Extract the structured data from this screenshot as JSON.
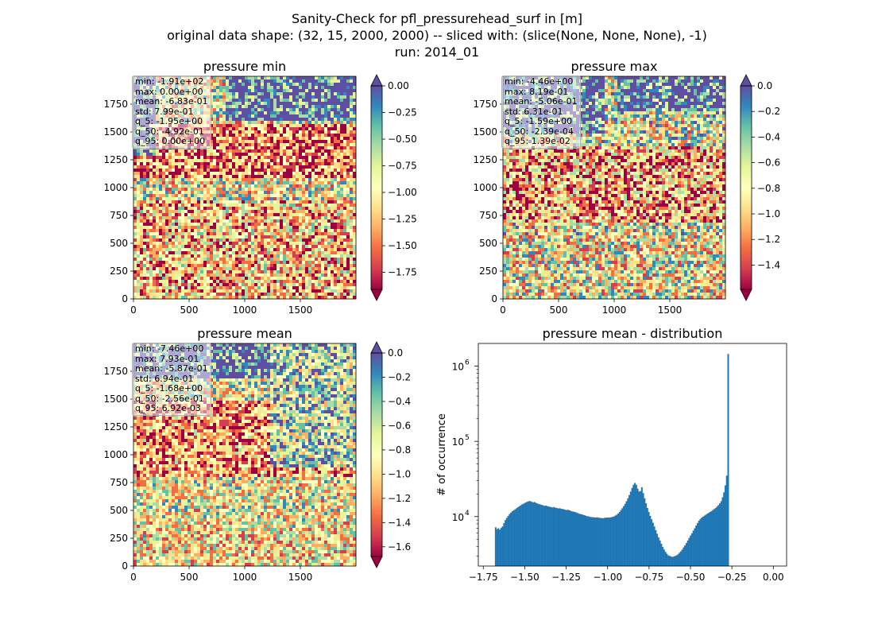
{
  "figure": {
    "suptitle_lines": [
      "Sanity-Check for pfl_pressurehead_surf in [m]",
      "original data shape: (32, 15, 2000, 2000) -- sliced with: (slice(None, None, None), -1)",
      "run: 2014_01"
    ]
  },
  "colors": {
    "spectral": [
      "#9e0142",
      "#d53e4f",
      "#f46d43",
      "#fdae61",
      "#fee08b",
      "#ffffbf",
      "#e6f598",
      "#abdda4",
      "#66c2a5",
      "#3288bd",
      "#5e4fa2"
    ],
    "hist_bar": "#1f77b4"
  },
  "chart_data": [
    {
      "type": "heatmap",
      "id": "min",
      "title": "pressure min",
      "x_ticks": [
        "0",
        "500",
        "1000",
        "1500"
      ],
      "y_ticks": [
        "0",
        "250",
        "500",
        "750",
        "1000",
        "1250",
        "1500",
        "1750"
      ],
      "axis_range": [
        0,
        2000
      ],
      "colorbar": {
        "range": [
          -1.91,
          0.0
        ],
        "ticks": [
          0.0,
          -0.25,
          -0.5,
          -0.75,
          -1.0,
          -1.25,
          -1.5,
          -1.75
        ],
        "tick_labels": [
          "0.00",
          "−0.25",
          "−0.50",
          "−0.75",
          "−1.00",
          "−1.25",
          "−1.50",
          "−1.75"
        ],
        "extend": "both"
      },
      "stats": [
        "min: -1.91e+02",
        "max: 0.00e+00",
        "mean: -6.83e-01",
        "std: 7.99e-01",
        "q_5: -1.95e+00",
        "q_50: -4.92e-01",
        "q_95: 0.00e+00"
      ]
    },
    {
      "type": "heatmap",
      "id": "max",
      "title": "pressure max",
      "x_ticks": [
        "0",
        "500",
        "1000",
        "1500"
      ],
      "y_ticks": [
        "0",
        "250",
        "500",
        "750",
        "1000",
        "1250",
        "1500",
        "1750"
      ],
      "axis_range": [
        0,
        2000
      ],
      "colorbar": {
        "range": [
          -1.59,
          0.0
        ],
        "ticks": [
          0.0,
          -0.2,
          -0.4,
          -0.6,
          -0.8,
          -1.0,
          -1.2,
          -1.4
        ],
        "tick_labels": [
          "0.0",
          "−0.2",
          "−0.4",
          "−0.6",
          "−0.8",
          "−1.0",
          "−1.2",
          "−1.4"
        ],
        "extend": "both"
      },
      "stats": [
        "min: -4.46e+00",
        "max: 8.19e-01",
        "mean: -5.06e-01",
        "std: 6.31e-01",
        "q_5: -1.59e+00",
        "q_50: -2.39e-04",
        "q_95: 1.39e-02"
      ]
    },
    {
      "type": "heatmap",
      "id": "mean",
      "title": "pressure mean",
      "x_ticks": [
        "0",
        "500",
        "1000",
        "1500"
      ],
      "y_ticks": [
        "0",
        "250",
        "500",
        "750",
        "1000",
        "1250",
        "1500",
        "1750"
      ],
      "axis_range": [
        0,
        2000
      ],
      "colorbar": {
        "range": [
          -1.68,
          0.0
        ],
        "ticks": [
          0.0,
          -0.2,
          -0.4,
          -0.6,
          -0.8,
          -1.0,
          -1.2,
          -1.4,
          -1.6
        ],
        "tick_labels": [
          "0.0",
          "−0.2",
          "−0.4",
          "−0.6",
          "−0.8",
          "−1.0",
          "−1.2",
          "−1.4",
          "−1.6"
        ],
        "extend": "both"
      },
      "stats": [
        "min: -7.46e+00",
        "max: 7.93e-01",
        "mean: -5.87e-01",
        "std: 6.94e-01",
        "q_5: -1.68e+00",
        "q_50: -2.56e-01",
        "q_95: 6.92e-03"
      ]
    },
    {
      "type": "bar",
      "id": "hist",
      "title": "pressure mean - distribution",
      "xlabel": "",
      "ylabel": "# of occurrence",
      "yscale": "log",
      "xlim": [
        -1.78,
        0.08
      ],
      "ylim": [
        2200,
        2000000
      ],
      "x_ticks": [
        -1.75,
        -1.5,
        -1.25,
        -1.0,
        -0.75,
        -0.5,
        -0.25,
        0.0
      ],
      "x_tick_labels": [
        "−1.75",
        "−1.50",
        "−1.25",
        "−1.00",
        "−0.75",
        "−0.50",
        "−0.25",
        "0.00"
      ],
      "y_ticks": [
        10000,
        100000,
        1000000
      ],
      "y_tick_labels": [
        "10",
        "10",
        "10"
      ],
      "y_tick_exponents": [
        "4",
        "5",
        "6"
      ],
      "bins": {
        "start": -1.68,
        "width": 0.0084
      },
      "values": [
        7200,
        6800,
        7000,
        6700,
        7100,
        7400,
        8200,
        9000,
        9600,
        10200,
        10800,
        11300,
        11800,
        12100,
        12500,
        12900,
        13300,
        13700,
        14100,
        14500,
        14800,
        15200,
        15500,
        15800,
        16100,
        16000,
        15700,
        15400,
        15600,
        15200,
        14900,
        14700,
        14500,
        14300,
        14100,
        13900,
        14000,
        13800,
        13600,
        13500,
        13300,
        13200,
        13400,
        13100,
        13000,
        12800,
        12900,
        12700,
        12600,
        12500,
        12300,
        12200,
        12300,
        12100,
        11900,
        11700,
        11600,
        11500,
        11300,
        11100,
        10900,
        10800,
        10700,
        10500,
        10400,
        10200,
        10100,
        10000,
        9900,
        9850,
        9800,
        9750,
        9700,
        9800,
        9650,
        9600,
        9550,
        9500,
        9600,
        9650,
        9700,
        9700,
        9750,
        9800,
        9900,
        10050,
        10300,
        10600,
        11000,
        11500,
        12200,
        12900,
        13800,
        14800,
        16000,
        17500,
        19300,
        21500,
        24000,
        26500,
        28000,
        26500,
        23500,
        21500,
        21800,
        24500,
        20500,
        17500,
        15000,
        13000,
        11500,
        10200,
        9200,
        8300,
        7400,
        6600,
        5900,
        5300,
        4800,
        4350,
        3950,
        3650,
        3400,
        3200,
        3050,
        3000,
        2950,
        2900,
        2950,
        3000,
        3050,
        3150,
        3300,
        3450,
        3650,
        3900,
        4150,
        4450,
        4800,
        5200,
        5600,
        6000,
        6500,
        7000,
        7600,
        8200,
        8800,
        9300,
        9700,
        10000,
        10300,
        10600,
        10900,
        11200,
        11500,
        11800,
        12200,
        12600,
        13000,
        13600,
        14200,
        15000,
        16000,
        18000,
        21000,
        26000,
        35000,
        1450000
      ]
    }
  ]
}
